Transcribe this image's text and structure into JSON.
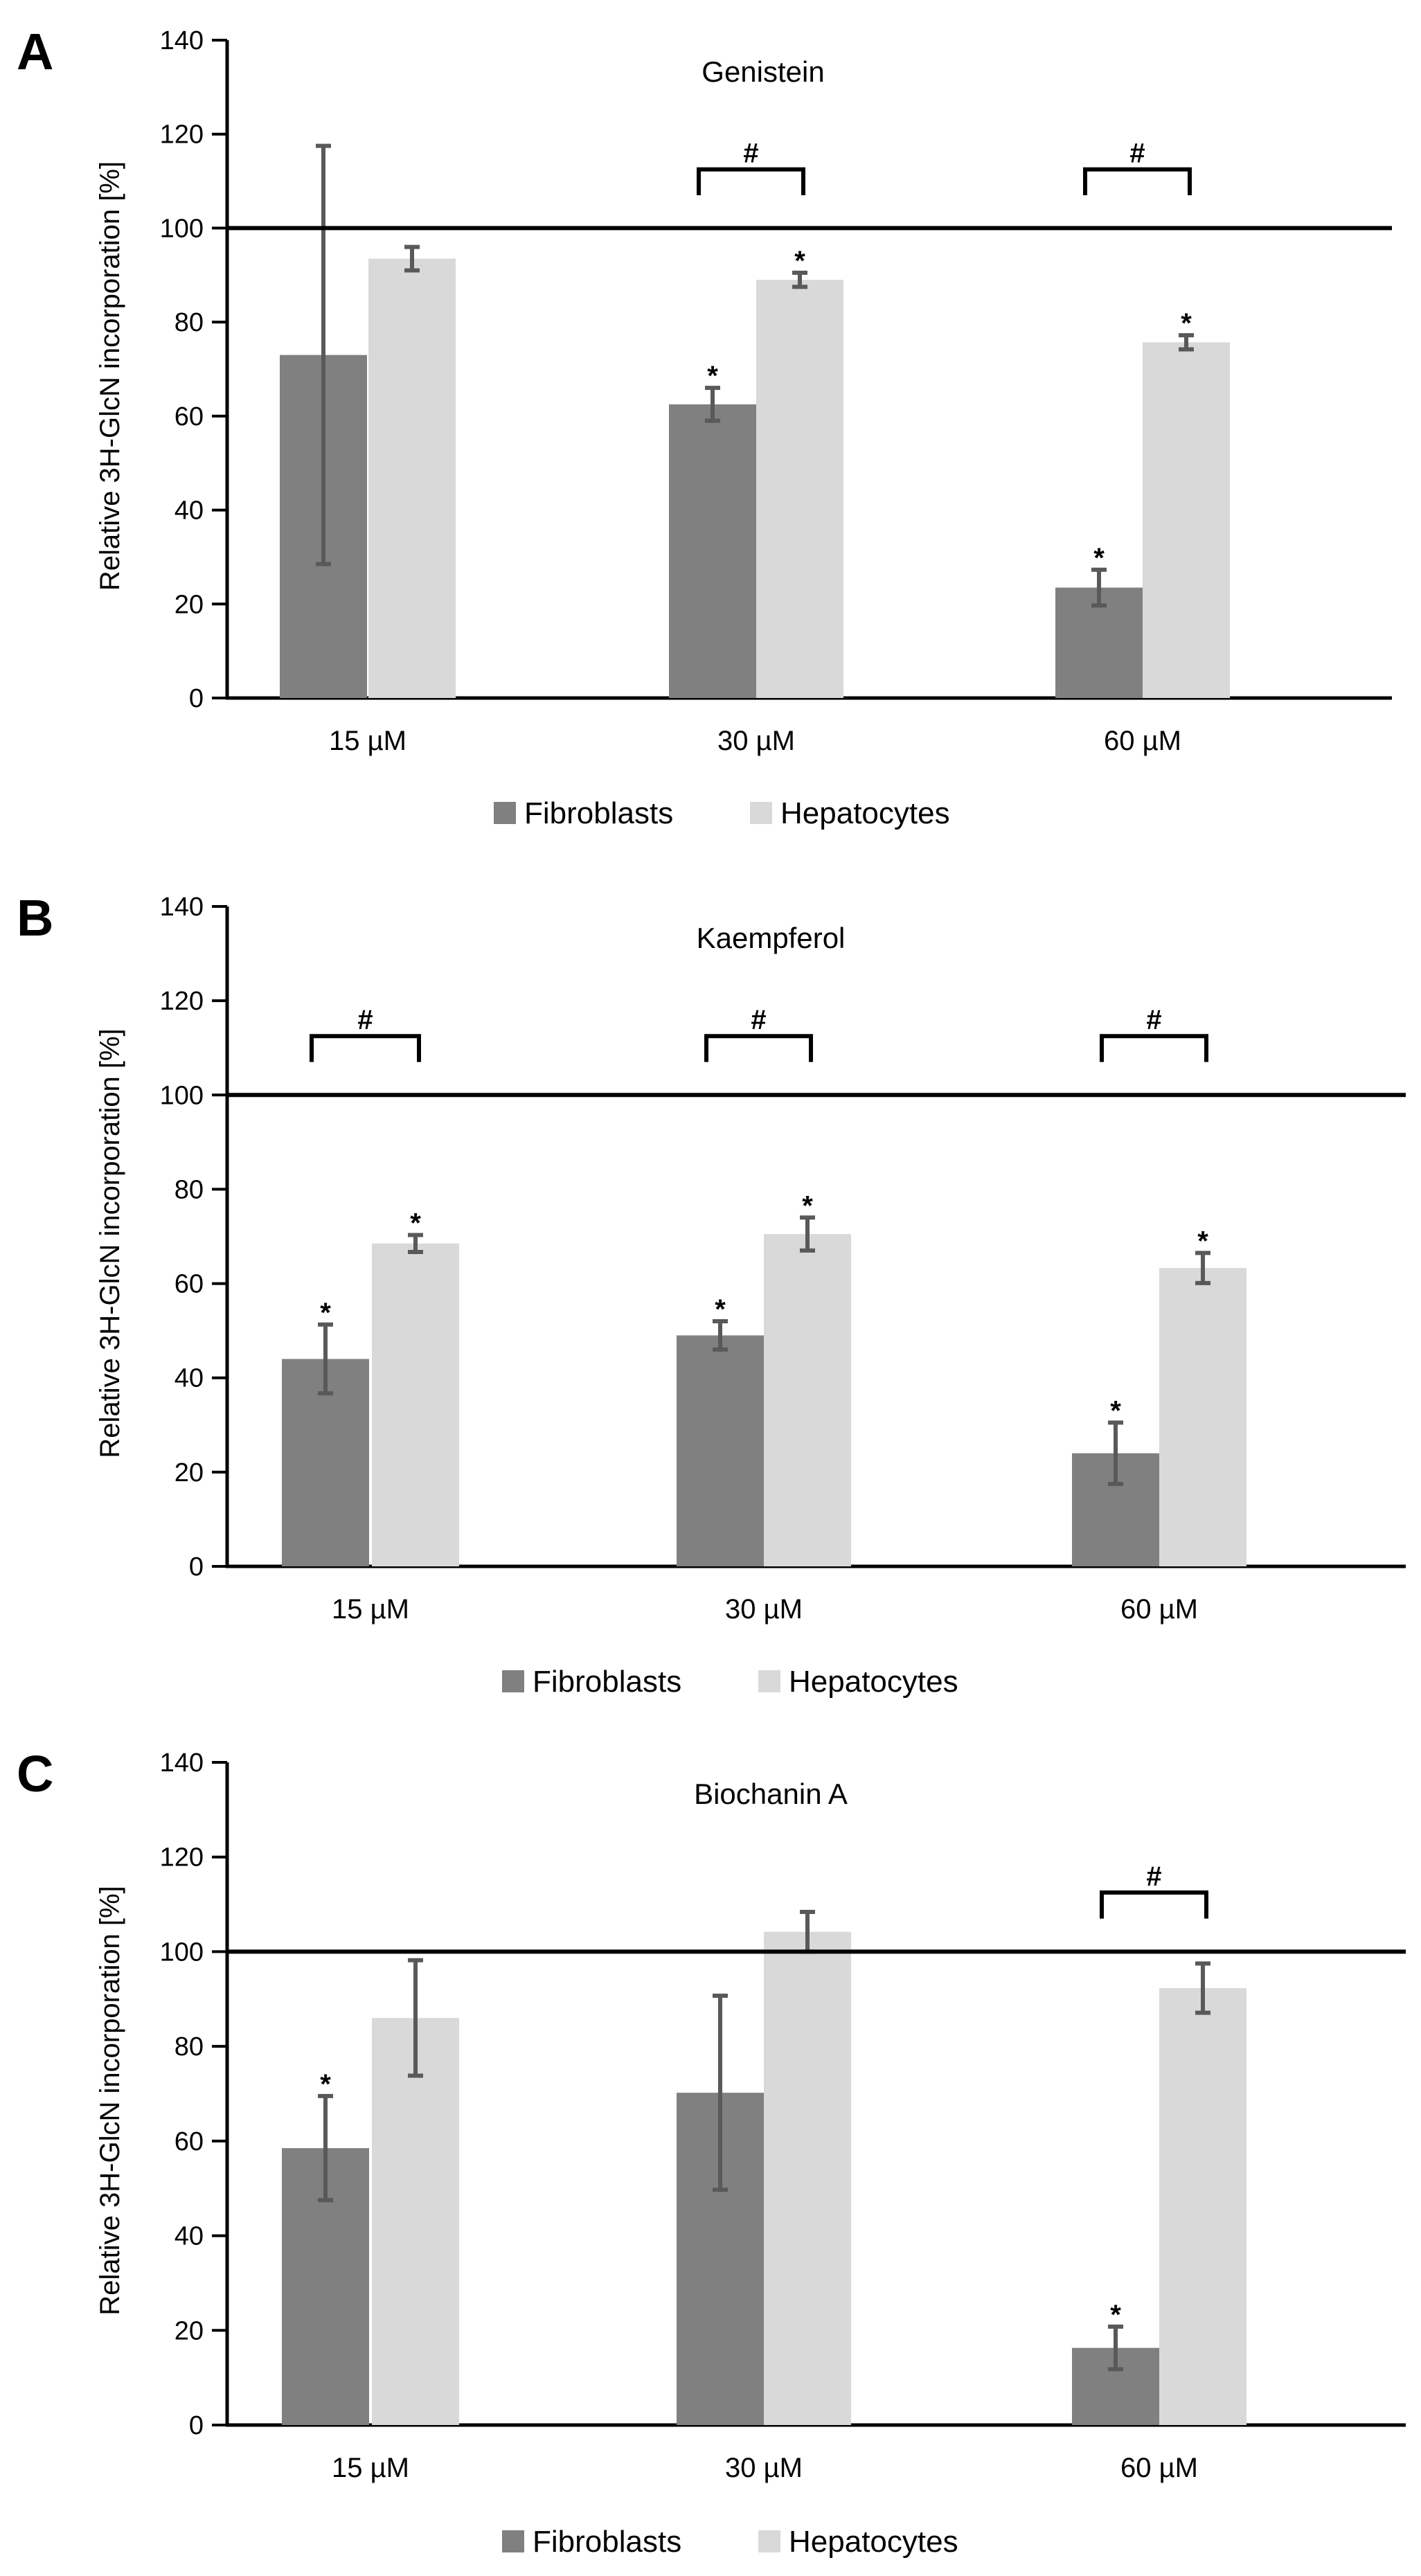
{
  "colors": {
    "fibroblasts": "#808080",
    "hepatocytes": "#d9d9d9",
    "error_bar": "#595959",
    "axis": "#000000"
  },
  "chart_data": [
    {
      "type": "bar",
      "panel": "A",
      "title": "Genistein",
      "ylabel": "Relative 3H-GlcN incorporation [%]",
      "xlabel": "",
      "ylim": [
        0,
        140
      ],
      "yticks": [
        "0",
        "20",
        "40",
        "60",
        "80",
        "100",
        "120",
        "140"
      ],
      "reference_line": 100,
      "categories": [
        "15 µM",
        "30 µM",
        "60 µM"
      ],
      "series": [
        {
          "name": "Fibroblasts",
          "values": [
            73,
            62.5,
            23.5
          ],
          "errors": [
            44.5,
            3.5,
            3.8
          ],
          "significant": [
            false,
            true,
            true
          ]
        },
        {
          "name": "Hepatocytes",
          "values": [
            93.5,
            89,
            75.7
          ],
          "errors": [
            2.5,
            1.5,
            1.5
          ],
          "significant": [
            false,
            true,
            true
          ]
        }
      ],
      "group_brackets": [
        false,
        true,
        true
      ],
      "star_symbol": "*",
      "bracket_symbol": "#",
      "legend": [
        "Fibroblasts",
        "Hepatocytes"
      ],
      "legend_position": "bottom"
    },
    {
      "type": "bar",
      "panel": "B",
      "title": "Kaempferol",
      "ylabel": "Relative 3H-GlcN incorporation [%]",
      "xlabel": "",
      "ylim": [
        0,
        140
      ],
      "yticks": [
        "0",
        "20",
        "40",
        "60",
        "80",
        "100",
        "120",
        "140"
      ],
      "reference_line": 100,
      "categories": [
        "15 µM",
        "30 µM",
        "60 µM"
      ],
      "series": [
        {
          "name": "Fibroblasts",
          "values": [
            44,
            49,
            24
          ],
          "errors": [
            7.3,
            3,
            6.5
          ],
          "significant": [
            true,
            true,
            true
          ]
        },
        {
          "name": "Hepatocytes",
          "values": [
            68.5,
            70.5,
            63.3
          ],
          "errors": [
            1.8,
            3.5,
            3.2
          ],
          "significant": [
            true,
            true,
            true
          ]
        }
      ],
      "group_brackets": [
        true,
        true,
        true
      ],
      "star_symbol": "*",
      "bracket_symbol": "#",
      "legend": [
        "Fibroblasts",
        "Hepatocytes"
      ],
      "legend_position": "bottom"
    },
    {
      "type": "bar",
      "panel": "C",
      "title": "Biochanin A",
      "ylabel": "Relative 3H-GlcN incorporation [%]",
      "xlabel": "",
      "ylim": [
        0,
        140
      ],
      "yticks": [
        "0",
        "20",
        "40",
        "60",
        "80",
        "100",
        "120",
        "140"
      ],
      "reference_line": 100,
      "categories": [
        "15 µM",
        "30 µM",
        "60 µM"
      ],
      "series": [
        {
          "name": "Fibroblasts",
          "values": [
            58.5,
            70.2,
            16.3
          ],
          "errors": [
            11,
            20.5,
            4.5
          ],
          "significant": [
            true,
            false,
            true
          ]
        },
        {
          "name": "Hepatocytes",
          "values": [
            86,
            104.2,
            92.3
          ],
          "errors": [
            12.2,
            4.2,
            5.2
          ],
          "significant": [
            false,
            false,
            false
          ]
        }
      ],
      "group_brackets": [
        false,
        false,
        true
      ],
      "star_symbol": "*",
      "bracket_symbol": "#",
      "legend": [
        "Fibroblasts",
        "Hepatocytes"
      ],
      "legend_position": "bottom"
    }
  ]
}
